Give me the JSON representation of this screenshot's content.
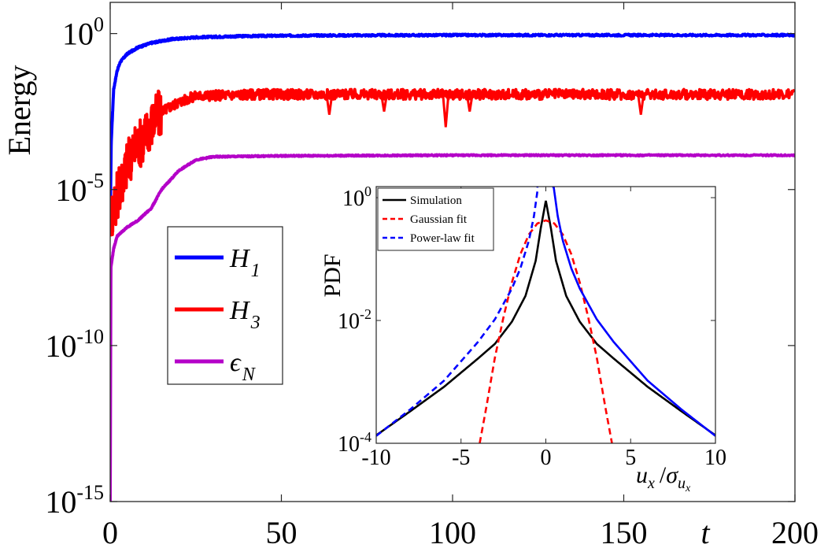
{
  "chart_data": [
    {
      "type": "line",
      "ylabel": "Energy",
      "xlabel": "t",
      "yscale": "log",
      "xlim": [
        0,
        200
      ],
      "ylim_exponent": [
        -16,
        1
      ],
      "x_ticks": [
        "0",
        "50",
        "100",
        "150",
        "200"
      ],
      "y_ticks": [
        {
          "base": "10",
          "exp": "0",
          "value": 0
        },
        {
          "base": "10",
          "exp": "-5",
          "value": -5
        },
        {
          "base": "10",
          "exp": "-10",
          "value": -10
        },
        {
          "base": "10",
          "exp": "-15",
          "value": -15
        }
      ],
      "legend": {
        "placement": "middle-left",
        "items": [
          {
            "symbol": "H",
            "sub": "1",
            "color": "#0000ff"
          },
          {
            "symbol": "H",
            "sub": "3",
            "color": "#ff0000"
          },
          {
            "symbol": "ϵ",
            "sub": "N",
            "color": "#b400c8"
          }
        ]
      },
      "series": [
        {
          "color": "#0000ff",
          "x": [
            0,
            0.3,
            1,
            2,
            3,
            5,
            8,
            12,
            18,
            25,
            40,
            60,
            100,
            150,
            200
          ],
          "log10_y": [
            -6.1,
            -3.5,
            -1.8,
            -1.2,
            -0.9,
            -0.65,
            -0.45,
            -0.3,
            -0.18,
            -0.12,
            -0.08,
            -0.06,
            -0.05,
            -0.05,
            -0.05
          ]
        },
        {
          "color": "#ff0000",
          "x": [
            0,
            0.5,
            2,
            4,
            6,
            8,
            10,
            12,
            15,
            20,
            25,
            40,
            60,
            100,
            150,
            200
          ],
          "log10_y": [
            -6.5,
            -5.8,
            -5.2,
            -4.5,
            -3.9,
            -3.6,
            -3.3,
            -2.9,
            -2.5,
            -2.2,
            -2.0,
            -1.95,
            -1.95,
            -1.95,
            -1.95,
            -1.95
          ],
          "dips": [
            {
              "x": 64,
              "log10_y": -2.6
            },
            {
              "x": 80,
              "log10_y": -2.5
            },
            {
              "x": 98,
              "log10_y": -3.0
            },
            {
              "x": 105,
              "log10_y": -2.5
            },
            {
              "x": 155,
              "log10_y": -2.6
            }
          ]
        },
        {
          "color": "#b400c8",
          "x": [
            0,
            0.2,
            1,
            2,
            5,
            8,
            12,
            15,
            20,
            25,
            30,
            50,
            100,
            150,
            200
          ],
          "log10_y": [
            -15,
            -7.5,
            -6.9,
            -6.5,
            -6.2,
            -6.0,
            -5.6,
            -5.0,
            -4.4,
            -4.05,
            -3.95,
            -3.92,
            -3.9,
            -3.9,
            -3.9
          ]
        }
      ]
    },
    {
      "type": "line",
      "title": "",
      "xlabel_parts": {
        "u": "u",
        "u_sub": "x",
        "slash": "/",
        "sigma": "σ",
        "sigma_sub": "u",
        "sigma_subsub": "x"
      },
      "ylabel": "PDF",
      "yscale": "log",
      "xlim": [
        -10,
        10
      ],
      "ylim_exponent": [
        -4,
        0
      ],
      "x_ticks": [
        "-10",
        "-5",
        "0",
        "5",
        "10"
      ],
      "y_ticks": [
        {
          "base": "10",
          "exp": "0",
          "value": 0
        },
        {
          "base": "10",
          "exp": "-2",
          "value": -2
        },
        {
          "base": "10",
          "exp": "-4",
          "value": -4
        }
      ],
      "legend": {
        "placement": "top-left",
        "items": [
          {
            "label": "Simulation",
            "color": "#000000",
            "style": "solid"
          },
          {
            "label": "Gaussian fit",
            "color": "#ff0000",
            "style": "dashed"
          },
          {
            "label": "Power-law fit",
            "color": "#0000ff",
            "style": "dashed"
          }
        ]
      },
      "series": [
        {
          "name": "Simulation",
          "color": "#000000",
          "style": "solid",
          "x": [
            -10,
            -8,
            -6,
            -4,
            -3,
            -2,
            -1.2,
            -0.6,
            -0.3,
            0,
            0.3,
            0.6,
            1.2,
            2,
            3,
            4,
            6,
            8,
            10
          ],
          "log10_y": [
            -3.87,
            -3.48,
            -3.08,
            -2.62,
            -2.38,
            -2.02,
            -1.6,
            -1.03,
            -0.5,
            -0.05,
            -0.5,
            -1.03,
            -1.6,
            -2.02,
            -2.38,
            -2.62,
            -3.08,
            -3.48,
            -3.87
          ]
        },
        {
          "name": "Gaussian fit",
          "color": "#ff0000",
          "style": "dashed",
          "x": [
            -3.9,
            -3.5,
            -3,
            -2.5,
            -2,
            -1.5,
            -1,
            -0.5,
            0,
            0.5,
            1,
            1.5,
            2,
            2.5,
            3,
            3.5,
            3.9
          ],
          "log10_y": [
            -4.0,
            -3.4,
            -2.6,
            -1.95,
            -1.38,
            -0.92,
            -0.6,
            -0.42,
            -0.37,
            -0.42,
            -0.6,
            -0.92,
            -1.38,
            -1.95,
            -2.6,
            -3.4,
            -4.0
          ]
        },
        {
          "name": "Power-law fit",
          "color": "#0000ff",
          "style": "dashed",
          "x": [
            -10,
            -8,
            -6,
            -4,
            -3,
            -2,
            -1.5,
            -1,
            -0.7,
            -0.45,
            0.45,
            0.7,
            1,
            1.5,
            2,
            3,
            4,
            6,
            8,
            10
          ],
          "log10_y": [
            -3.88,
            -3.45,
            -2.98,
            -2.35,
            -1.98,
            -1.48,
            -1.15,
            -0.7,
            -0.3,
            0.2,
            0.2,
            -0.3,
            -0.7,
            -1.15,
            -1.48,
            -1.98,
            -2.35,
            -2.98,
            -3.45,
            -3.88
          ]
        }
      ]
    }
  ]
}
